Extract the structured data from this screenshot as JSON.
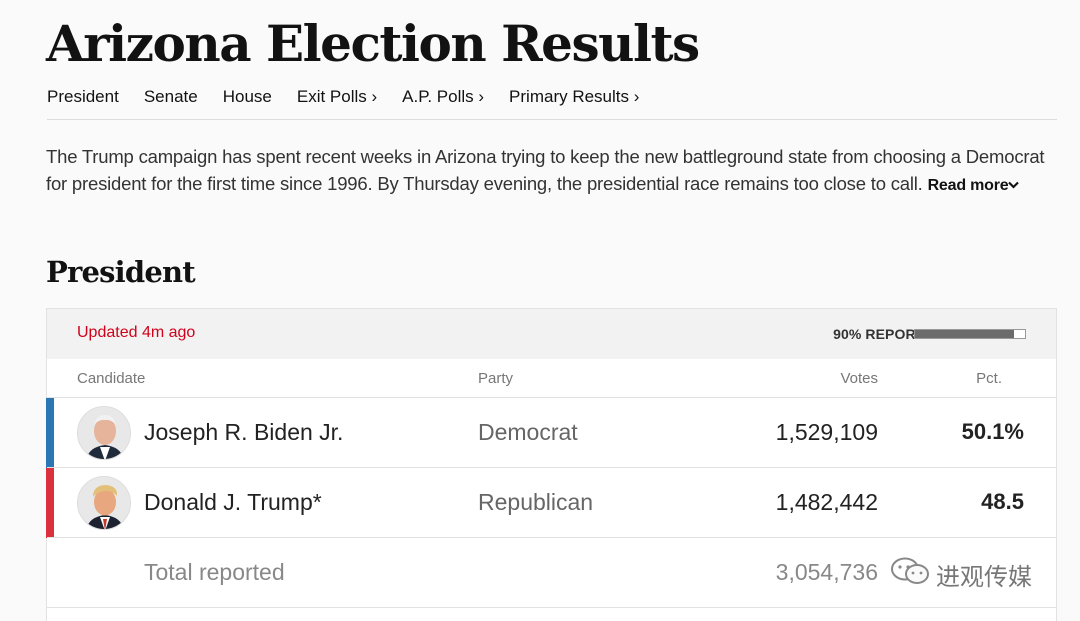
{
  "page": {
    "title": "Arizona Election Results"
  },
  "nav": {
    "items": [
      {
        "label": "President"
      },
      {
        "label": "Senate"
      },
      {
        "label": "House"
      },
      {
        "label": "Exit Polls ›"
      },
      {
        "label": "A.P. Polls ›"
      },
      {
        "label": "Primary Results ›"
      }
    ]
  },
  "intro": {
    "text": "The Trump campaign has spent recent weeks in Arizona trying to keep the new battleground state from choosing a Democrat for president for the first time since 1996. By Thursday evening, the presidential race remains too close to call.",
    "read_more": "Read more",
    "read_more_icon": "chevron-down-icon"
  },
  "section": {
    "title": "President"
  },
  "results": {
    "updated": "Updated 4m ago",
    "reported_label": "90% REPORTED",
    "reported_fraction": 0.9,
    "columns": {
      "candidate": "Candidate",
      "party": "Party",
      "votes": "Votes",
      "pct": "Pct."
    },
    "candidates": [
      {
        "name": "Joseph R. Biden Jr.",
        "party": "Democrat",
        "votes": "1,529,109",
        "pct": "50.1%",
        "color": "#2a77b5"
      },
      {
        "name": "Donald J. Trump*",
        "party": "Republican",
        "votes": "1,482,442",
        "pct": "48.5",
        "color": "#d9323e"
      }
    ],
    "total": {
      "label": "Total reported",
      "votes": "3,054,736"
    }
  },
  "watermark": {
    "text": "进观传媒",
    "icon": "wechat-icon"
  },
  "colors": {
    "accent_red": "#d0021b",
    "democrat": "#2a77b5",
    "republican": "#d9323e"
  }
}
